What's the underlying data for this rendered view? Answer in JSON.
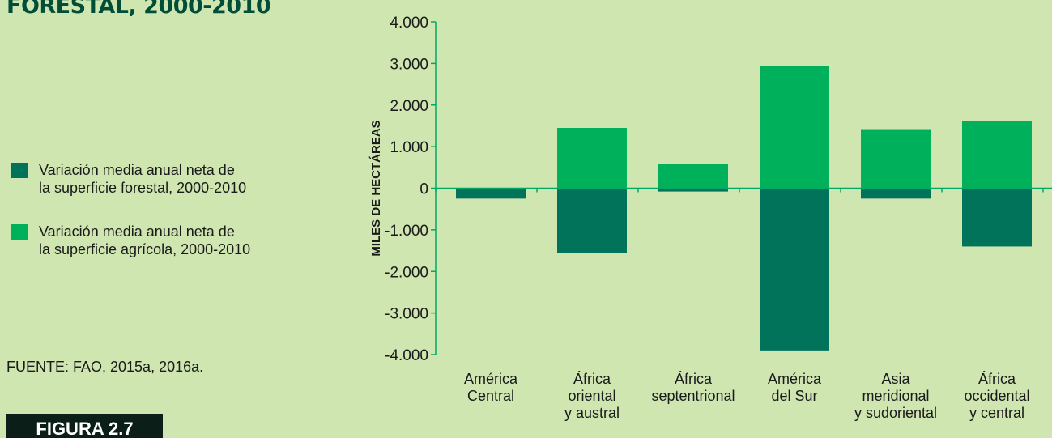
{
  "header": {
    "title": "FORESTAL, 2000-2010"
  },
  "legend": {
    "forest": {
      "lines": [
        "Variación media anual neta de",
        "la superficie forestal, 2000-2010"
      ]
    },
    "agri": {
      "lines": [
        "Variación media anual neta de",
        "la superficie agrícola, 2000-2010"
      ]
    }
  },
  "source": "FUENTE: FAO, 2015a, 2016a.",
  "figure_label": "FIGURA 2.7",
  "colors": {
    "background": "#cfe6b1",
    "forest": "#00735a",
    "agri": "#00b05a",
    "axis": "#00a865"
  },
  "chart_data": {
    "type": "bar",
    "stacked": true,
    "ylabel": "MILES DE HECTÁREAS",
    "ylim": [
      -4000,
      4000
    ],
    "yticks": [
      -4000,
      -3000,
      -2000,
      -1000,
      0,
      1000,
      2000,
      3000,
      4000
    ],
    "ytick_labels": [
      "-4.000",
      "-3.000",
      "-2.000",
      "-1.000",
      "0",
      "1.000",
      "2.000",
      "3.000",
      "4.000"
    ],
    "categories": [
      [
        "América",
        "Central"
      ],
      [
        "África",
        "oriental",
        "y austral"
      ],
      [
        "África",
        "septentrional"
      ],
      [
        "América",
        "del Sur"
      ],
      [
        "Asia",
        "meridional",
        "y sudoriental"
      ],
      [
        "África",
        "occidental",
        "y central"
      ]
    ],
    "series": [
      {
        "name": "Variación media anual neta de la superficie forestal, 2000-2010",
        "values": [
          -250,
          -1560,
          -80,
          -3900,
          -250,
          -1400
        ]
      },
      {
        "name": "Variación media anual neta de la superficie agrícola, 2000-2010",
        "values": [
          0,
          1450,
          580,
          2930,
          1420,
          1620
        ]
      }
    ],
    "grid": false,
    "legend_position": "left"
  }
}
